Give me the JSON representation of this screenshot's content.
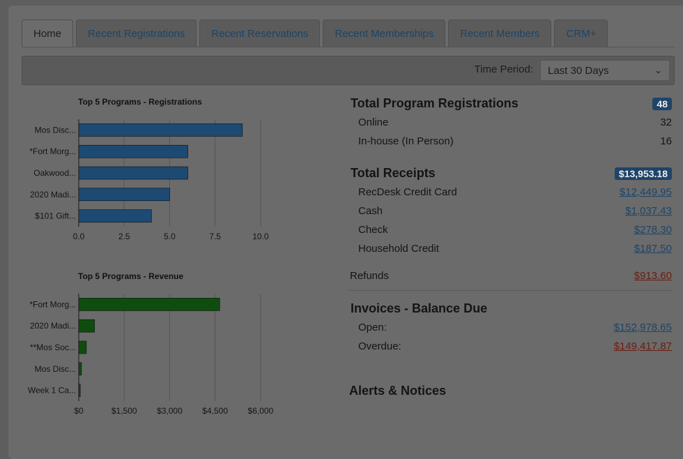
{
  "tabs": [
    {
      "label": "Home",
      "active": true
    },
    {
      "label": "Recent Registrations"
    },
    {
      "label": "Recent Reservations"
    },
    {
      "label": "Recent Memberships"
    },
    {
      "label": "Recent Members"
    },
    {
      "label": "CRM+"
    }
  ],
  "toolbar": {
    "time_period_label": "Time Period:",
    "time_period_value": "Last 30 Days",
    "chevron_icon": "chevron-down-icon"
  },
  "chart_data": [
    {
      "type": "bar",
      "orientation": "horizontal",
      "title": "Top 5 Programs - Registrations",
      "categories": [
        "Mos Disc...",
        "*Fort Morg...",
        "Oakwood...",
        "2020 Madi...",
        "$101 Gift..."
      ],
      "values": [
        9,
        6,
        6,
        5,
        4
      ],
      "xlim": [
        0,
        11.5
      ],
      "ticks": [
        0,
        2.5,
        5,
        7.5,
        10
      ],
      "tick_labels": [
        "0.0",
        "2.5",
        "5.0",
        "7.5",
        "10.0"
      ],
      "color": "#1c4a73",
      "grid": true
    },
    {
      "type": "bar",
      "orientation": "horizontal",
      "title": "Top 5 Programs - Revenue",
      "categories": [
        "*Fort Morg...",
        "2020 Madi...",
        "**Mos Soc...",
        "Mos Disc...",
        "Week 1 Ca..."
      ],
      "values": [
        4650,
        520,
        250,
        90,
        50
      ],
      "xlim": [
        0,
        6900
      ],
      "ticks": [
        0,
        1500,
        3000,
        4500,
        6000
      ],
      "tick_labels": [
        "$0",
        "$1,500",
        "$3,000",
        "$4,500",
        "$6,000"
      ],
      "color": "#0f4d0f",
      "grid": true
    }
  ],
  "registrations": {
    "title": "Total Program Registrations",
    "total": "48",
    "rows": [
      {
        "label": "Online",
        "value": "32"
      },
      {
        "label": "In-house (In Person)",
        "value": "16"
      }
    ]
  },
  "receipts": {
    "title": "Total Receipts",
    "total": "$13,953.18",
    "rows": [
      {
        "label": "RecDesk Credit Card",
        "value": "$12,449.95"
      },
      {
        "label": "Cash",
        "value": "$1,037.43"
      },
      {
        "label": "Check",
        "value": "$278.30"
      },
      {
        "label": "Household Credit",
        "value": "$187.50"
      }
    ],
    "refunds_label": "Refunds",
    "refunds_value": "$913.60"
  },
  "invoices": {
    "title": "Invoices - Balance Due",
    "open_label": "Open:",
    "open_value": "$152,978.65",
    "overdue_label": "Overdue:",
    "overdue_value": "$149,417.87"
  },
  "alerts": {
    "title": "Alerts & Notices"
  }
}
